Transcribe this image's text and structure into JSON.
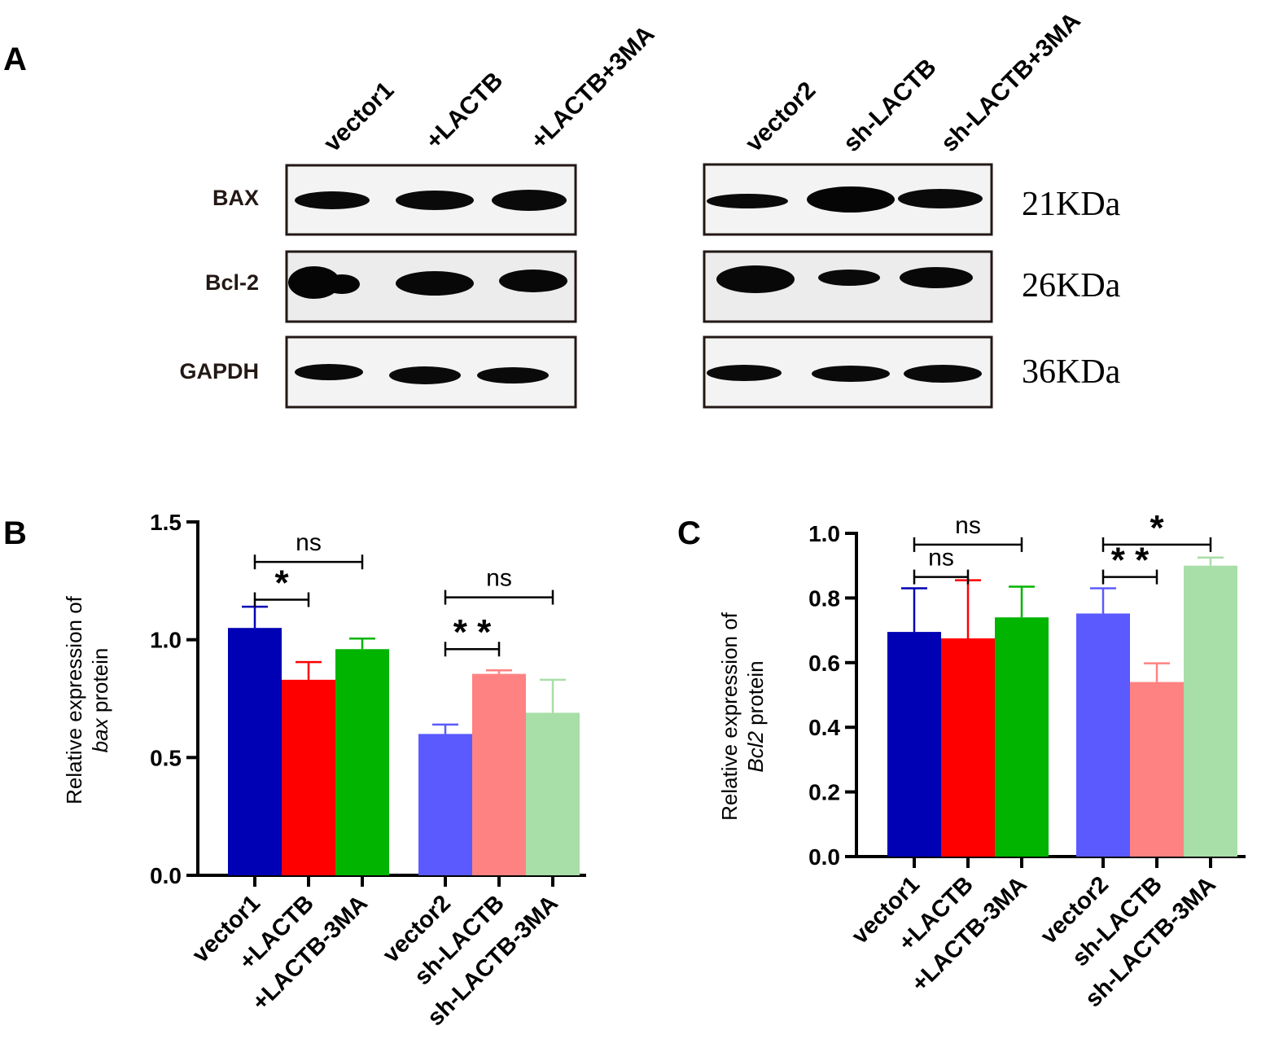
{
  "panels": {
    "a": "A",
    "b": "B",
    "c": "C"
  },
  "blot": {
    "left_lanes": [
      "vector1",
      "+LACTB",
      "+LACTB+3MA"
    ],
    "right_lanes": [
      "vector2",
      "sh-LACTB",
      "sh-LACTB+3MA"
    ],
    "proteins": [
      "BAX",
      "Bcl-2",
      "GAPDH"
    ],
    "sizes": [
      "21KDa",
      "26KDa",
      "36KDa"
    ]
  },
  "colors": {
    "vector1": "#0000b4",
    "LACTB": "#ff0000",
    "LACTB_3MA": "#00b400",
    "vector2": "#5a5aff",
    "sh_LACTB": "#ff8282",
    "sh_LACTB_3MA": "#a8dea8"
  },
  "chart_data": [
    {
      "type": "bar",
      "ylabel_line1": "Relative expression of",
      "ylabel_line2_italic": "bax",
      "ylabel_line2_rest": " protein",
      "ylim": [
        0,
        1.5
      ],
      "yticks": [
        "0.0",
        "0.5",
        "1.0",
        "1.5"
      ],
      "categories": [
        "vector1",
        "+LACTB",
        "+LACTB-3MA",
        "vector2",
        "sh-LACTB",
        "sh-LACTB-3MA"
      ],
      "values": [
        1.05,
        0.83,
        0.96,
        0.6,
        0.855,
        0.69
      ],
      "errors": [
        0.09,
        0.075,
        0.045,
        0.04,
        0.015,
        0.14
      ],
      "significance": [
        {
          "from": 0,
          "to": 1,
          "label": "*",
          "level": 1.17
        },
        {
          "from": 0,
          "to": 2,
          "label": "ns",
          "level": 1.33
        },
        {
          "from": 3,
          "to": 4,
          "label": "* *",
          "level": 0.96
        },
        {
          "from": 3,
          "to": 5,
          "label": "ns",
          "level": 1.18
        }
      ]
    },
    {
      "type": "bar",
      "ylabel_line1": "Relative expression of",
      "ylabel_line2_italic": "Bcl2",
      "ylabel_line2_rest": " protein",
      "ylim": [
        0,
        1.0
      ],
      "yticks": [
        "0.0",
        "0.2",
        "0.4",
        "0.6",
        "0.8",
        "1.0"
      ],
      "categories": [
        "vector1",
        "+LACTB",
        "+LACTB-3MA",
        "vector2",
        "sh-LACTB",
        "sh-LACTB-3MA"
      ],
      "values": [
        0.695,
        0.675,
        0.74,
        0.752,
        0.54,
        0.9
      ],
      "errors": [
        0.135,
        0.18,
        0.095,
        0.078,
        0.058,
        0.025
      ],
      "significance": [
        {
          "from": 0,
          "to": 1,
          "label": "ns",
          "level": 0.865
        },
        {
          "from": 0,
          "to": 2,
          "label": "ns",
          "level": 0.965
        },
        {
          "from": 3,
          "to": 4,
          "label": "* *",
          "level": 0.865
        },
        {
          "from": 3,
          "to": 5,
          "label": "*",
          "level": 0.965
        }
      ]
    }
  ]
}
